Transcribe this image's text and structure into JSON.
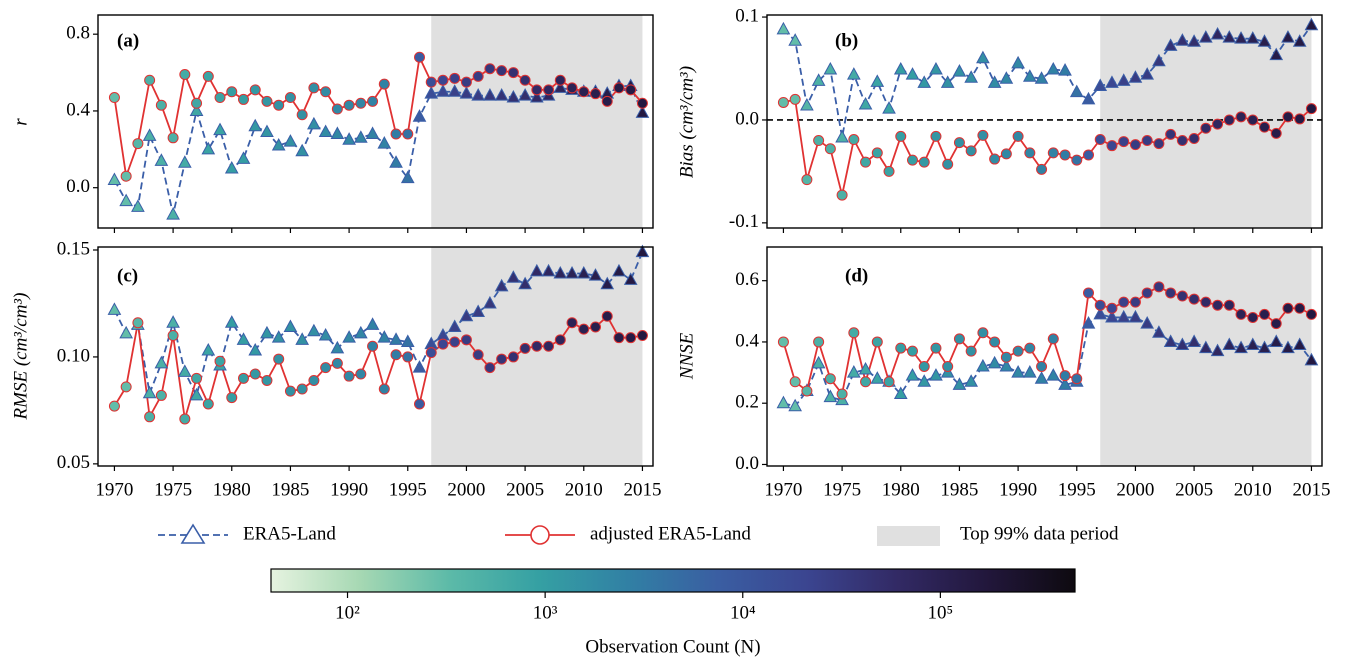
{
  "chart_data": [
    {
      "type": "line",
      "annotation": "(a)",
      "ylabel": "r",
      "xlim": [
        1968.6,
        2015.9
      ],
      "ylim": [
        -0.21,
        0.9
      ],
      "yticks": [
        {
          "value": 0,
          "label": "0.0"
        },
        0.4,
        0.8
      ],
      "xticks": [
        1970,
        1975,
        1980,
        1985,
        1990,
        1995,
        2000,
        2005,
        2010,
        2015
      ],
      "show_xtick_labels": false,
      "x": [
        1970,
        1971,
        1972,
        1973,
        1974,
        1975,
        1976,
        1977,
        1978,
        1979,
        1980,
        1981,
        1982,
        1983,
        1984,
        1985,
        1986,
        1987,
        1988,
        1989,
        1990,
        1991,
        1992,
        1993,
        1994,
        1995,
        1996,
        1997,
        1998,
        1999,
        2000,
        2001,
        2002,
        2003,
        2004,
        2005,
        2006,
        2007,
        2008,
        2009,
        2010,
        2011,
        2012,
        2013,
        2014,
        2015
      ],
      "series": [
        {
          "name": "ERA5-Land",
          "color": "#3a5ea8",
          "marker": "triangle",
          "dashed": true,
          "values": [
            0.04,
            -0.07,
            -0.1,
            0.27,
            0.14,
            -0.14,
            0.13,
            0.4,
            0.2,
            0.3,
            0.1,
            0.15,
            0.32,
            0.29,
            0.22,
            0.24,
            0.19,
            0.33,
            0.29,
            0.28,
            0.25,
            0.26,
            0.28,
            0.23,
            0.13,
            0.05,
            0.37,
            0.49,
            0.5,
            0.5,
            0.49,
            0.48,
            0.48,
            0.48,
            0.47,
            0.48,
            0.47,
            0.48,
            0.52,
            0.51,
            0.5,
            0.5,
            0.49,
            0.53,
            0.53,
            0.39
          ]
        },
        {
          "name": "adjusted ERA5-Land",
          "color": "#e03232",
          "marker": "circle",
          "dashed": false,
          "values": [
            0.47,
            0.06,
            0.23,
            0.56,
            0.43,
            0.26,
            0.59,
            0.44,
            0.58,
            0.47,
            0.5,
            0.46,
            0.51,
            0.45,
            0.43,
            0.47,
            0.38,
            0.52,
            0.5,
            0.41,
            0.43,
            0.44,
            0.45,
            0.54,
            0.28,
            0.28,
            0.68,
            0.55,
            0.56,
            0.57,
            0.55,
            0.58,
            0.62,
            0.61,
            0.6,
            0.56,
            0.51,
            0.51,
            0.56,
            0.52,
            0.5,
            0.49,
            0.45,
            0.52,
            0.51,
            0.44
          ]
        }
      ]
    },
    {
      "type": "line",
      "annotation": "(b)",
      "ylabel": "Bias (cm³/cm³)",
      "xlim": [
        1968.6,
        2015.9
      ],
      "ylim": [
        -0.105,
        0.102
      ],
      "hline": 0,
      "yticks": [
        -0.1,
        {
          "value": 0,
          "label": "0.0"
        },
        0.1
      ],
      "xticks": [
        1970,
        1975,
        1980,
        1985,
        1990,
        1995,
        2000,
        2005,
        2010,
        2015
      ],
      "show_xtick_labels": false,
      "x": [
        1970,
        1971,
        1972,
        1973,
        1974,
        1975,
        1976,
        1977,
        1978,
        1979,
        1980,
        1981,
        1982,
        1983,
        1984,
        1985,
        1986,
        1987,
        1988,
        1989,
        1990,
        1991,
        1992,
        1993,
        1994,
        1995,
        1996,
        1997,
        1998,
        1999,
        2000,
        2001,
        2002,
        2003,
        2004,
        2005,
        2006,
        2007,
        2008,
        2009,
        2010,
        2011,
        2012,
        2013,
        2014,
        2015
      ],
      "series": [
        {
          "name": "ERA5-Land",
          "color": "#3a5ea8",
          "marker": "triangle",
          "dashed": true,
          "values": [
            0.088,
            0.077,
            0.014,
            0.038,
            0.049,
            -0.017,
            0.044,
            0.015,
            0.037,
            0.011,
            0.049,
            0.044,
            0.036,
            0.049,
            0.036,
            0.047,
            0.041,
            0.06,
            0.036,
            0.04,
            0.055,
            0.042,
            0.04,
            0.049,
            0.048,
            0.027,
            0.02,
            0.033,
            0.036,
            0.038,
            0.041,
            0.044,
            0.057,
            0.072,
            0.077,
            0.076,
            0.08,
            0.083,
            0.08,
            0.079,
            0.079,
            0.076,
            0.063,
            0.08,
            0.076,
            0.092
          ]
        },
        {
          "name": "adjusted ERA5-Land",
          "color": "#e03232",
          "marker": "circle",
          "dashed": false,
          "values": [
            0.017,
            0.02,
            -0.058,
            -0.02,
            -0.028,
            -0.073,
            -0.019,
            -0.041,
            -0.032,
            -0.05,
            -0.016,
            -0.039,
            -0.041,
            -0.016,
            -0.043,
            -0.022,
            -0.03,
            -0.015,
            -0.038,
            -0.033,
            -0.016,
            -0.032,
            -0.048,
            -0.032,
            -0.034,
            -0.039,
            -0.034,
            -0.019,
            -0.025,
            -0.021,
            -0.024,
            -0.02,
            -0.023,
            -0.014,
            -0.02,
            -0.018,
            -0.008,
            -0.004,
            0.0,
            0.003,
            0.0,
            -0.007,
            -0.013,
            0.003,
            0.001,
            0.011
          ]
        }
      ]
    },
    {
      "type": "line",
      "annotation": "(c)",
      "ylabel": "RMSE (cm³/cm³)",
      "xlim": [
        1968.6,
        2015.9
      ],
      "ylim": [
        0.049,
        0.1514
      ],
      "yticks": [
        0.05,
        {
          "value": 0.1,
          "label": "0.10"
        },
        0.15
      ],
      "xticks": [
        1970,
        1975,
        1980,
        1985,
        1990,
        1995,
        2000,
        2005,
        2010,
        2015
      ],
      "show_xtick_labels": true,
      "x": [
        1970,
        1971,
        1972,
        1973,
        1974,
        1975,
        1976,
        1977,
        1978,
        1979,
        1980,
        1981,
        1982,
        1983,
        1984,
        1985,
        1986,
        1987,
        1988,
        1989,
        1990,
        1991,
        1992,
        1993,
        1994,
        1995,
        1996,
        1997,
        1998,
        1999,
        2000,
        2001,
        2002,
        2003,
        2004,
        2005,
        2006,
        2007,
        2008,
        2009,
        2010,
        2011,
        2012,
        2013,
        2014,
        2015
      ],
      "series": [
        {
          "name": "ERA5-Land",
          "color": "#3a5ea8",
          "marker": "triangle",
          "dashed": true,
          "values": [
            0.122,
            0.111,
            0.115,
            0.083,
            0.097,
            0.116,
            0.093,
            0.082,
            0.103,
            0.096,
            0.116,
            0.108,
            0.103,
            0.111,
            0.109,
            0.114,
            0.108,
            0.112,
            0.11,
            0.104,
            0.109,
            0.111,
            0.115,
            0.109,
            0.108,
            0.107,
            0.095,
            0.106,
            0.11,
            0.114,
            0.119,
            0.121,
            0.125,
            0.133,
            0.137,
            0.134,
            0.14,
            0.14,
            0.139,
            0.139,
            0.139,
            0.138,
            0.134,
            0.14,
            0.136,
            0.149
          ]
        },
        {
          "name": "adjusted ERA5-Land",
          "color": "#e03232",
          "marker": "circle",
          "dashed": false,
          "values": [
            0.077,
            0.086,
            0.116,
            0.072,
            0.082,
            0.11,
            0.071,
            0.09,
            0.078,
            0.098,
            0.081,
            0.09,
            0.092,
            0.089,
            0.099,
            0.084,
            0.085,
            0.089,
            0.095,
            0.097,
            0.091,
            0.092,
            0.105,
            0.085,
            0.101,
            0.1,
            0.078,
            0.102,
            0.106,
            0.107,
            0.108,
            0.101,
            0.095,
            0.099,
            0.1,
            0.104,
            0.105,
            0.105,
            0.108,
            0.116,
            0.113,
            0.114,
            0.119,
            0.109,
            0.109,
            0.11
          ]
        }
      ]
    },
    {
      "type": "line",
      "annotation": "(d)",
      "ylabel": "NNSE",
      "xlim": [
        1968.6,
        2015.9
      ],
      "ylim": [
        -0.005,
        0.71
      ],
      "yticks": [
        {
          "value": 0,
          "label": "0.0"
        },
        0.2,
        0.4,
        0.6
      ],
      "xticks": [
        1970,
        1975,
        1980,
        1985,
        1990,
        1995,
        2000,
        2005,
        2010,
        2015
      ],
      "show_xtick_labels": true,
      "x": [
        1970,
        1971,
        1972,
        1973,
        1974,
        1975,
        1976,
        1977,
        1978,
        1979,
        1980,
        1981,
        1982,
        1983,
        1984,
        1985,
        1986,
        1987,
        1988,
        1989,
        1990,
        1991,
        1992,
        1993,
        1994,
        1995,
        1996,
        1997,
        1998,
        1999,
        2000,
        2001,
        2002,
        2003,
        2004,
        2005,
        2006,
        2007,
        2008,
        2009,
        2010,
        2011,
        2012,
        2013,
        2014,
        2015
      ],
      "series": [
        {
          "name": "ERA5-Land",
          "color": "#3a5ea8",
          "marker": "triangle",
          "dashed": true,
          "values": [
            0.2,
            0.19,
            0.24,
            0.33,
            0.22,
            0.21,
            0.3,
            0.31,
            0.28,
            0.27,
            0.23,
            0.29,
            0.27,
            0.29,
            0.3,
            0.26,
            0.27,
            0.32,
            0.33,
            0.32,
            0.3,
            0.3,
            0.28,
            0.29,
            0.26,
            0.27,
            0.46,
            0.49,
            0.48,
            0.48,
            0.48,
            0.46,
            0.43,
            0.4,
            0.39,
            0.4,
            0.38,
            0.37,
            0.39,
            0.38,
            0.39,
            0.38,
            0.4,
            0.38,
            0.39,
            0.34
          ]
        },
        {
          "name": "adjusted ERA5-Land",
          "color": "#e03232",
          "marker": "circle",
          "dashed": false,
          "values": [
            0.4,
            0.27,
            0.24,
            0.4,
            0.28,
            0.23,
            0.43,
            0.27,
            0.4,
            0.27,
            0.38,
            0.37,
            0.32,
            0.38,
            0.32,
            0.41,
            0.37,
            0.43,
            0.4,
            0.35,
            0.37,
            0.38,
            0.32,
            0.41,
            0.29,
            0.28,
            0.56,
            0.52,
            0.51,
            0.53,
            0.53,
            0.56,
            0.58,
            0.56,
            0.55,
            0.54,
            0.53,
            0.52,
            0.52,
            0.49,
            0.48,
            0.49,
            0.46,
            0.51,
            0.51,
            0.49
          ]
        }
      ]
    }
  ],
  "shaded_period": {
    "range": [
      1997,
      2015
    ],
    "label": "Top 99% data period",
    "color": "#e0e0e0"
  },
  "observation_counts": [
    300,
    300,
    400,
    500,
    500,
    500,
    600,
    700,
    800,
    800,
    1000,
    1000,
    1200,
    1300,
    1500,
    1500,
    1500,
    1600,
    1800,
    2000,
    2000,
    2200,
    2500,
    2500,
    3000,
    4000,
    8000,
    15000,
    20000,
    25000,
    30000,
    30000,
    35000,
    40000,
    45000,
    50000,
    60000,
    70000,
    80000,
    90000,
    100000,
    110000,
    120000,
    130000,
    140000,
    150000
  ],
  "colorbar": {
    "label": "Observation Count (N)",
    "log": true,
    "lim": [
      41,
      480000
    ],
    "ticks": [
      {
        "value": 100,
        "label": "10²"
      },
      {
        "value": 1000,
        "label": "10³"
      },
      {
        "value": 10000,
        "label": "10⁴"
      },
      {
        "value": 100000,
        "label": "10⁵"
      }
    ],
    "colormap": [
      "#e6f3e0",
      "#a6d8b3",
      "#5cbaa8",
      "#35a0a3",
      "#3180a4",
      "#3a5ea2",
      "#3b4590",
      "#322a65",
      "#22173c",
      "#0e0a10"
    ]
  }
}
